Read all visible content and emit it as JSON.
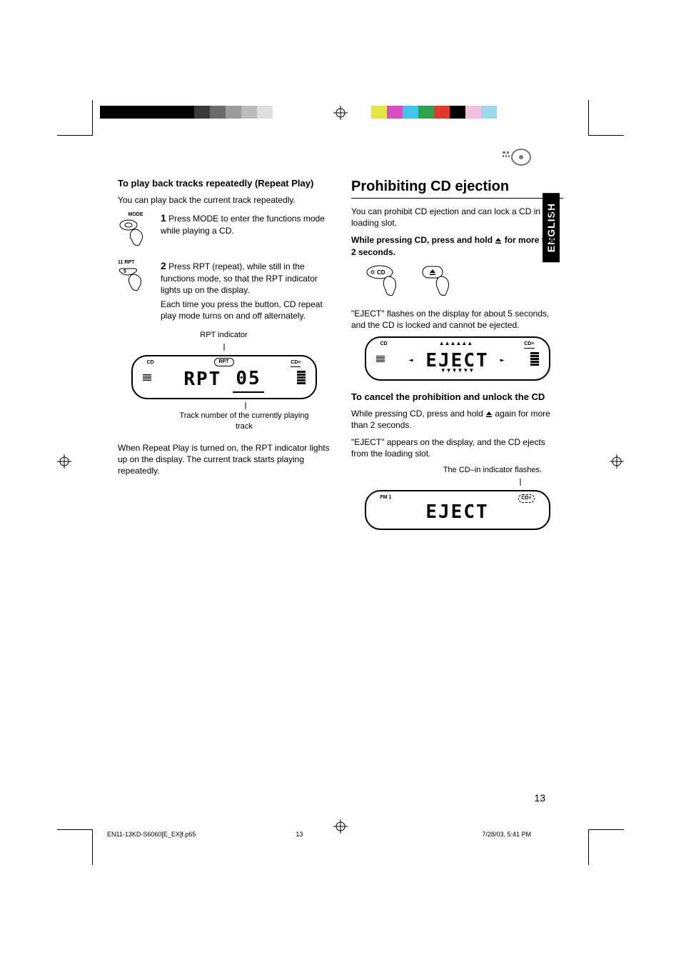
{
  "colorbar_left": [
    "#000000",
    "#000000",
    "#000000",
    "#000000",
    "#000000",
    "#000000",
    "#3a3a3a",
    "#6b6b6b",
    "#9b9b9b",
    "#bcbcbc",
    "#dedede"
  ],
  "colorbar_right": [
    "#e4e442",
    "#d94fbf",
    "#3fc6e8",
    "#2fa54b",
    "#e03a2e",
    "#000000",
    "#f5bfe0",
    "#9fd7ea"
  ],
  "language_tab": "ENGLISH",
  "left": {
    "heading": "To play back tracks repeatedly (Repeat Play)",
    "intro": "You can play back the current track repeatedly.",
    "step1_label": "MODE",
    "step1_num": "1",
    "step1_text": "Press MODE to enter the functions mode while playing a CD.",
    "step2_label": "11  RPT",
    "step2_btn": "5",
    "step2_num": "2",
    "step2_text_a": "Press RPT (repeat), while still in the functions mode, so that the RPT indicator lights up on the display.",
    "step2_text_b": "Each time you press the button, CD repeat play mode turns on and off alternately.",
    "display_caption_top": "RPT indicator",
    "lcd": {
      "top_left": "CD",
      "badge": "RPT",
      "cd_in": "CD≡",
      "main_left": "RPT",
      "main_right": "05"
    },
    "display_caption_bottom": "Track number of the currently playing track",
    "para_end": "When Repeat Play is turned on, the RPT indicator lights up on the display. The current track starts playing repeatedly."
  },
  "right": {
    "title": "Prohibiting CD ejection",
    "intro": "You can prohibit CD ejection and can lock a CD in the loading slot.",
    "instruction_a": "While pressing CD, press and hold ",
    "instruction_b": " for more than 2 seconds.",
    "cd_btn_label": "CD",
    "after_press": "\"EJECT\" flashes on the display for about 5 seconds, and the CD is locked and cannot be ejected.",
    "lcd1": {
      "top_left": "CD",
      "cd_in": "CD≡",
      "main": "EJECT"
    },
    "cancel_heading": "To cancel the prohibition and unlock the CD",
    "cancel_text_a": "While pressing CD, press and hold ",
    "cancel_text_b": " again for more than 2 seconds.",
    "cancel_text_c": "\"EJECT\" appears on the display, and the CD ejects from the loading slot.",
    "lcd2_caption": "The CD–in indicator flashes.",
    "lcd2": {
      "top_left": "FM 1",
      "cd_in": "CD≡",
      "main": "EJECT"
    }
  },
  "page_number": "13",
  "footer": {
    "file": "EN11-13KD-S6060[E_EX]f.p65",
    "page": "13",
    "date": "7/28/03, 5:41 PM"
  }
}
